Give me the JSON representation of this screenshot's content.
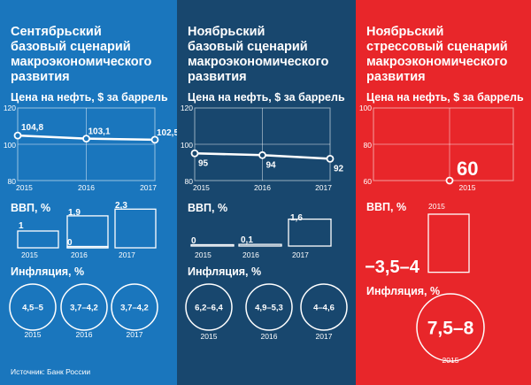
{
  "panels": [
    {
      "key": "sep",
      "title_lines": [
        "Сентябрьский",
        "базовый сценарий",
        "макроэкономического",
        "развития"
      ],
      "oil_label": "Цена на нефть, $ за баррель",
      "gdp_label": "ВВП, %",
      "inflation_label": "Инфляция, %"
    },
    {
      "key": "nov",
      "title_lines": [
        "Ноябрьский",
        "базовый сценарий",
        "макроэкономического",
        "развития"
      ],
      "oil_label": "Цена на нефть, $ за баррель",
      "gdp_label": "ВВП, %",
      "inflation_label": "Инфляция, %"
    },
    {
      "key": "str",
      "title_lines": [
        "Ноябрьский",
        "стрессовый сценарий",
        "макроэкономического",
        "развития"
      ],
      "oil_label": "Цена на нефть, $ за баррель",
      "gdp_label": "ВВП, %",
      "inflation_label": "Инфляция, %"
    }
  ],
  "footer": "Источник: Банк России",
  "colors": {
    "september": "#1a76bd",
    "november": "#18476e",
    "stress": "#e8262a"
  },
  "chart_data": [
    {
      "type": "line",
      "panel": "sep",
      "x": [
        "2015",
        "2016",
        "2017"
      ],
      "values": [
        104.8,
        103.1,
        102.5
      ],
      "value_labels": [
        "104,8",
        "103,1",
        "102,5"
      ],
      "yticks": [
        "80",
        "100",
        "120"
      ],
      "ylim": [
        80,
        120
      ]
    },
    {
      "type": "bar",
      "panel": "sep",
      "categories": [
        "2015",
        "2016",
        "2017"
      ],
      "values": [
        1,
        0,
        2.3
      ],
      "value_labels": [
        "1",
        "0",
        "2,3"
      ],
      "extra_labels": [
        "1,9"
      ]
    },
    {
      "type": "bubble",
      "panel": "sep",
      "categories": [
        "2015",
        "2016",
        "2017"
      ],
      "labels": [
        "4,5–5",
        "3,7–4,2",
        "3,7–4,2"
      ],
      "values": [
        4.75,
        3.95,
        3.95
      ]
    },
    {
      "type": "line",
      "panel": "nov",
      "x": [
        "2015",
        "2016",
        "2017"
      ],
      "values": [
        95,
        94,
        92
      ],
      "value_labels": [
        "95",
        "94",
        "92"
      ],
      "yticks": [
        "80",
        "100",
        "120"
      ],
      "ylim": [
        80,
        120
      ]
    },
    {
      "type": "bar",
      "panel": "nov",
      "categories": [
        "2015",
        "2016",
        "2017"
      ],
      "values": [
        0,
        0.1,
        1.6
      ],
      "value_labels": [
        "0",
        "0,1",
        "1,6"
      ]
    },
    {
      "type": "bubble",
      "panel": "nov",
      "categories": [
        "2015",
        "2016",
        "2017"
      ],
      "labels": [
        "6,2–6,4",
        "4,9–5,3",
        "4–4,6"
      ],
      "values": [
        6.3,
        5.1,
        4.3
      ]
    },
    {
      "type": "scatter",
      "panel": "str",
      "x": [
        "2015"
      ],
      "values": [
        60
      ],
      "value_labels": [
        "60"
      ],
      "yticks": [
        "60",
        "80",
        "100"
      ],
      "ylim": [
        60,
        100
      ]
    },
    {
      "type": "bar",
      "panel": "str",
      "categories": [
        "2015"
      ],
      "values": [
        -3.75
      ],
      "value_labels": [
        "−3,5–4"
      ]
    },
    {
      "type": "bubble",
      "panel": "str",
      "categories": [
        "2015"
      ],
      "labels": [
        "7,5–8"
      ],
      "values": [
        7.75
      ]
    }
  ]
}
